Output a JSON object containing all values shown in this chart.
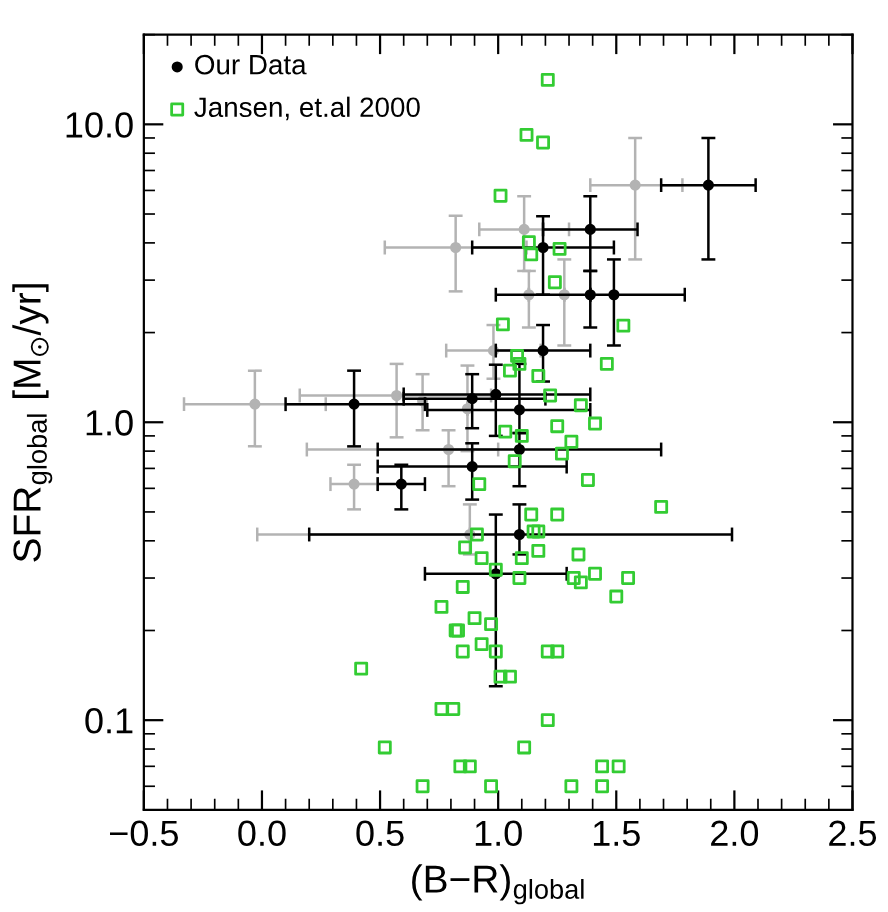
{
  "chart_data": {
    "type": "scatter",
    "xlabel": "(B−R)$_{global}$",
    "ylabel": "SFR$_{global}$ [M$_{⊙}$/yr]",
    "xlim": [
      -0.5,
      2.5
    ],
    "ylim": [
      0.05,
      20
    ],
    "log": "y",
    "grid": false,
    "legend": "top left",
    "xticks": [
      {
        "value": -0.5,
        "label": "−0.5"
      },
      {
        "value": 0,
        "label": "0.0"
      },
      {
        "value": 0.5,
        "label": "0.5"
      },
      {
        "value": 1,
        "label": "1.0"
      },
      {
        "value": 1.5,
        "label": "1.5"
      },
      {
        "value": 2,
        "label": "2.0"
      },
      {
        "value": 2.5,
        "label": "2.5"
      }
    ],
    "yticks": [
      0.1,
      {
        "value": 1,
        "label": "1.0"
      },
      {
        "value": 10,
        "label": "10.0"
      }
    ],
    "series": [
      {
        "color": "#b3b3b3",
        "marker": "circle",
        "x": [
          -0.03,
          0.82,
          0.57,
          0.68,
          0.87,
          0.98,
          1.58,
          1.11,
          1.13,
          1.28,
          0.39,
          0.79,
          0.88
        ],
        "values": [
          1.15,
          3.86,
          1.23,
          1.18,
          1.11,
          1.74,
          6.25,
          4.44,
          2.68,
          2.68,
          0.62,
          0.81,
          0.42
        ],
        "xerrors": [
          [
            -0.33,
            0.27
          ],
          [
            0.52,
            1.12
          ],
          [
            0.16,
            0.97
          ],
          null,
          null,
          [
            0.78,
            1.18
          ],
          [
            1.39,
            1.78
          ],
          [
            0.92,
            1.3
          ],
          null,
          null,
          [
            0.29,
            0.49
          ],
          [
            0.19,
            1.0
          ],
          [
            -0.02,
            0.88
          ]
        ],
        "errors": [
          [
            0.83,
            1.49
          ],
          [
            2.75,
            4.93
          ],
          [
            0.89,
            1.57
          ],
          [
            0.94,
            1.45
          ],
          [
            0.8,
            1.55
          ],
          [
            1.4,
            2.12
          ],
          [
            3.52,
            9.0
          ],
          [
            3.22,
            5.74
          ],
          [
            2.08,
            3.22
          ],
          [
            1.81,
            3.52
          ],
          [
            0.51,
            0.72
          ],
          [
            0.61,
            0.94
          ],
          [
            0.36,
            0.53
          ]
        ]
      },
      {
        "name": "Our Data",
        "color": "#000000",
        "marker": "circle",
        "x": [
          0.39,
          0.59,
          0.89,
          0.99,
          1.09,
          1.19,
          1.39,
          1.49,
          1.19,
          1.39,
          1.89,
          0.89,
          1.09,
          1.09,
          0.99
        ],
        "values": [
          1.15,
          0.62,
          1.2,
          1.24,
          1.1,
          1.74,
          2.68,
          2.68,
          3.86,
          4.44,
          6.25,
          0.71,
          0.81,
          0.42,
          0.31
        ],
        "xerrors": [
          [
            0.1,
            0.69
          ],
          [
            0.49,
            0.69
          ],
          [
            0.6,
            1.2
          ],
          [
            0.6,
            1.39
          ],
          [
            0.7,
            1.39
          ],
          [
            0.99,
            1.39
          ],
          null,
          [
            0.99,
            1.79
          ],
          [
            0.89,
            1.49
          ],
          [
            1.19,
            1.59
          ],
          [
            1.69,
            2.09
          ],
          [
            0.49,
            1.29
          ],
          [
            0.49,
            1.69
          ],
          [
            0.2,
            1.99
          ],
          [
            0.69,
            1.29
          ]
        ],
        "errors": [
          [
            0.83,
            1.49
          ],
          [
            0.51,
            0.72
          ],
          [
            0.955,
            1.45
          ],
          [
            0.9,
            1.56
          ],
          [
            0.92,
            1.57
          ],
          [
            1.37,
            2.12
          ],
          [
            2.08,
            3.22
          ],
          [
            1.81,
            3.52
          ],
          [
            2.68,
            4.91
          ],
          [
            3.22,
            5.74
          ],
          [
            3.52,
            9.0
          ],
          [
            0.55,
            0.85
          ],
          [
            0.61,
            0.92
          ],
          [
            0.36,
            0.53
          ],
          [
            0.13,
            0.49
          ]
        ]
      },
      {
        "name": "Jansen, et.al 2000",
        "color": "#33cc33",
        "marker": "square",
        "x": [
          1.21,
          1.12,
          1.19,
          1.01,
          1.13,
          1.14,
          1.26,
          1.24,
          1.53,
          1.02,
          1.46,
          1.08,
          1.09,
          1.05,
          1.17,
          1.22,
          1.35,
          1.25,
          1.41,
          1.03,
          1.1,
          1.31,
          1.27,
          1.07,
          0.92,
          1.38,
          1.69,
          1.14,
          1.25,
          1.15,
          1.17,
          0.91,
          0.86,
          1.17,
          0.93,
          1.1,
          1.34,
          0.99,
          0.85,
          1.09,
          1.32,
          1.35,
          1.41,
          1.55,
          1.5,
          0.9,
          0.97,
          0.83,
          0.76,
          0.82,
          0.85,
          0.93,
          0.99,
          1.21,
          1.25,
          1.01,
          1.05,
          0.42,
          0.76,
          0.81,
          1.21,
          1.11,
          0.52,
          0.84,
          0.88,
          1.44,
          1.51,
          0.68,
          0.97,
          1.31,
          1.44
        ],
        "values": [
          14.1,
          9.22,
          8.69,
          5.76,
          4.02,
          3.66,
          3.82,
          2.95,
          2.11,
          2.13,
          1.57,
          1.67,
          1.57,
          1.49,
          1.43,
          1.23,
          1.14,
          0.97,
          0.99,
          0.93,
          0.9,
          0.86,
          0.785,
          0.74,
          0.62,
          0.64,
          0.52,
          0.49,
          0.49,
          0.43,
          0.43,
          0.42,
          0.38,
          0.37,
          0.35,
          0.35,
          0.36,
          0.32,
          0.28,
          0.3,
          0.3,
          0.29,
          0.31,
          0.3,
          0.26,
          0.22,
          0.21,
          0.2,
          0.24,
          0.2,
          0.17,
          0.18,
          0.17,
          0.17,
          0.17,
          0.14,
          0.14,
          0.149,
          0.109,
          0.109,
          0.1,
          0.081,
          0.081,
          0.07,
          0.07,
          0.07,
          0.07,
          0.06,
          0.06,
          0.06,
          0.06
        ]
      }
    ]
  }
}
